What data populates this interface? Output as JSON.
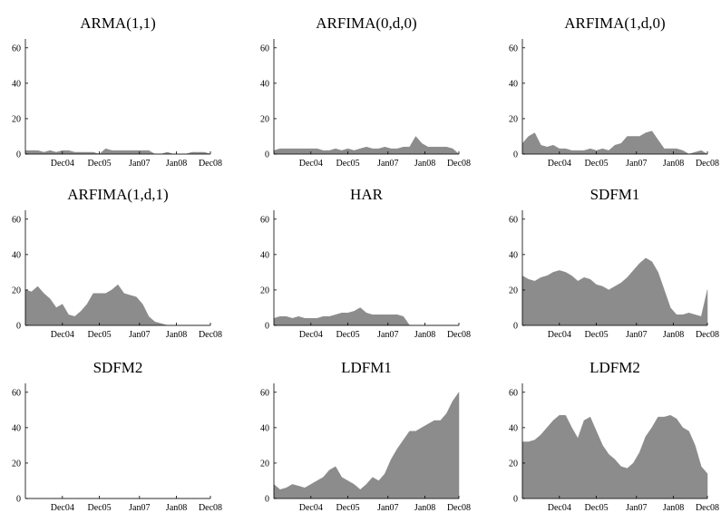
{
  "chart_data": [
    {
      "type": "area",
      "title": "ARMA(1,1)",
      "color": "#8c8c8c",
      "x": [
        0,
        2,
        4,
        6,
        8,
        10,
        12,
        14,
        16,
        18,
        20,
        22,
        24,
        26,
        28,
        30,
        32,
        34,
        36,
        38,
        40,
        42,
        44,
        46,
        48,
        50,
        52,
        54,
        56,
        58,
        60
      ],
      "values": [
        2,
        2,
        2,
        1,
        2,
        1,
        2,
        2,
        1,
        1,
        1,
        1,
        0,
        3,
        2,
        2,
        2,
        2,
        2,
        2,
        2,
        0,
        0,
        1,
        0,
        0,
        0,
        1,
        1,
        1,
        0
      ],
      "xlim": [
        0,
        60
      ],
      "ylim": [
        0,
        65
      ],
      "yticks": [
        0,
        20,
        40,
        60
      ],
      "xticks": [
        {
          "value": 12,
          "label": "Dec04"
        },
        {
          "value": 24,
          "label": "Dec05"
        },
        {
          "value": 37,
          "label": "Jan07"
        },
        {
          "value": 49,
          "label": "Jan08"
        },
        {
          "value": 60,
          "label": "Dec08"
        }
      ]
    },
    {
      "type": "area",
      "title": "ARFIMA(0,d,0)",
      "color": "#8c8c8c",
      "x": [
        0,
        2,
        4,
        6,
        8,
        10,
        12,
        14,
        16,
        18,
        20,
        22,
        24,
        26,
        28,
        30,
        32,
        34,
        36,
        38,
        40,
        42,
        44,
        46,
        48,
        50,
        52,
        54,
        56,
        58,
        60
      ],
      "values": [
        2,
        3,
        3,
        3,
        3,
        3,
        3,
        3,
        2,
        2,
        3,
        2,
        3,
        2,
        3,
        4,
        3,
        3,
        4,
        3,
        3,
        4,
        4,
        10,
        6,
        4,
        4,
        4,
        4,
        3,
        0
      ],
      "xlim": [
        0,
        60
      ],
      "ylim": [
        0,
        65
      ],
      "yticks": [
        0,
        20,
        40,
        60
      ],
      "xticks": [
        {
          "value": 12,
          "label": "Dec04"
        },
        {
          "value": 24,
          "label": "Dec05"
        },
        {
          "value": 37,
          "label": "Jan07"
        },
        {
          "value": 49,
          "label": "Jan08"
        },
        {
          "value": 60,
          "label": "Dec08"
        }
      ]
    },
    {
      "type": "area",
      "title": "ARFIMA(1,d,0)",
      "color": "#8c8c8c",
      "x": [
        0,
        2,
        4,
        6,
        8,
        10,
        12,
        14,
        16,
        18,
        20,
        22,
        24,
        26,
        28,
        30,
        32,
        34,
        36,
        38,
        40,
        42,
        44,
        46,
        48,
        50,
        52,
        54,
        56,
        58,
        60
      ],
      "values": [
        6,
        10,
        12,
        5,
        4,
        5,
        3,
        3,
        2,
        2,
        2,
        3,
        2,
        3,
        2,
        5,
        6,
        10,
        10,
        10,
        12,
        13,
        8,
        3,
        3,
        3,
        2,
        0,
        1,
        2,
        0
      ],
      "xlim": [
        0,
        60
      ],
      "ylim": [
        0,
        65
      ],
      "yticks": [
        0,
        20,
        40,
        60
      ],
      "xticks": [
        {
          "value": 12,
          "label": "Dec04"
        },
        {
          "value": 24,
          "label": "Dec05"
        },
        {
          "value": 37,
          "label": "Jan07"
        },
        {
          "value": 49,
          "label": "Jan08"
        },
        {
          "value": 60,
          "label": "Dec08"
        }
      ]
    },
    {
      "type": "area",
      "title": "ARFIMA(1,d,1)",
      "color": "#8c8c8c",
      "x": [
        0,
        2,
        4,
        6,
        8,
        10,
        12,
        14,
        16,
        18,
        20,
        22,
        24,
        26,
        28,
        30,
        32,
        34,
        36,
        38,
        40,
        42,
        44,
        46,
        48,
        50,
        52,
        54,
        56,
        58,
        60
      ],
      "values": [
        20,
        19,
        22,
        18,
        15,
        10,
        12,
        6,
        5,
        8,
        12,
        18,
        18,
        18,
        20,
        23,
        18,
        17,
        16,
        12,
        5,
        2,
        1,
        0,
        0,
        0,
        0,
        0,
        0,
        0,
        0
      ],
      "xlim": [
        0,
        60
      ],
      "ylim": [
        0,
        65
      ],
      "yticks": [
        0,
        20,
        40,
        60
      ],
      "xticks": [
        {
          "value": 12,
          "label": "Dec04"
        },
        {
          "value": 24,
          "label": "Dec05"
        },
        {
          "value": 37,
          "label": "Jan07"
        },
        {
          "value": 49,
          "label": "Jan08"
        },
        {
          "value": 60,
          "label": "Dec08"
        }
      ]
    },
    {
      "type": "area",
      "title": "HAR",
      "color": "#8c8c8c",
      "x": [
        0,
        2,
        4,
        6,
        8,
        10,
        12,
        14,
        16,
        18,
        20,
        22,
        24,
        26,
        28,
        30,
        32,
        34,
        36,
        38,
        40,
        42,
        44,
        46,
        48,
        50,
        52,
        54,
        56,
        58,
        60
      ],
      "values": [
        4,
        5,
        5,
        4,
        5,
        4,
        4,
        4,
        5,
        5,
        6,
        7,
        7,
        8,
        10,
        7,
        6,
        6,
        6,
        6,
        6,
        5,
        0,
        0,
        0,
        0,
        0,
        0,
        0,
        0,
        0
      ],
      "xlim": [
        0,
        60
      ],
      "ylim": [
        0,
        65
      ],
      "yticks": [
        0,
        20,
        40,
        60
      ],
      "xticks": [
        {
          "value": 12,
          "label": "Dec04"
        },
        {
          "value": 24,
          "label": "Dec05"
        },
        {
          "value": 37,
          "label": "Jan07"
        },
        {
          "value": 49,
          "label": "Jan08"
        },
        {
          "value": 60,
          "label": "Dec08"
        }
      ]
    },
    {
      "type": "area",
      "title": "SDFM1",
      "color": "#8c8c8c",
      "x": [
        0,
        2,
        4,
        6,
        8,
        10,
        12,
        14,
        16,
        18,
        20,
        22,
        24,
        26,
        28,
        30,
        32,
        34,
        36,
        38,
        40,
        42,
        44,
        46,
        48,
        50,
        52,
        54,
        56,
        58,
        60
      ],
      "values": [
        28,
        26,
        25,
        27,
        28,
        30,
        31,
        30,
        28,
        25,
        27,
        26,
        23,
        22,
        20,
        22,
        24,
        27,
        31,
        35,
        38,
        36,
        30,
        20,
        10,
        6,
        6,
        7,
        6,
        5,
        20
      ],
      "xlim": [
        0,
        60
      ],
      "ylim": [
        0,
        65
      ],
      "yticks": [
        0,
        20,
        40,
        60
      ],
      "xticks": [
        {
          "value": 12,
          "label": "Dec04"
        },
        {
          "value": 24,
          "label": "Dec05"
        },
        {
          "value": 37,
          "label": "Jan07"
        },
        {
          "value": 49,
          "label": "Jan08"
        },
        {
          "value": 60,
          "label": "Dec08"
        }
      ]
    },
    {
      "type": "area",
      "title": "SDFM2",
      "color": "#8c8c8c",
      "x": [
        0,
        2,
        4,
        6,
        8,
        10,
        12,
        14,
        16,
        18,
        20,
        22,
        24,
        26,
        28,
        30,
        32,
        34,
        36,
        38,
        40,
        42,
        44,
        46,
        48,
        50,
        52,
        54,
        56,
        58,
        60
      ],
      "values": [
        0,
        0,
        0,
        0,
        0,
        0,
        0,
        0,
        0,
        0,
        0,
        0,
        0,
        0,
        0,
        0,
        0,
        0,
        0,
        0,
        0,
        0,
        0,
        0,
        0,
        0,
        0,
        0,
        0,
        0,
        0
      ],
      "xlim": [
        0,
        60
      ],
      "ylim": [
        0,
        65
      ],
      "yticks": [
        0,
        20,
        40,
        60
      ],
      "xticks": [
        {
          "value": 12,
          "label": "Dec04"
        },
        {
          "value": 24,
          "label": "Dec05"
        },
        {
          "value": 37,
          "label": "Jan07"
        },
        {
          "value": 49,
          "label": "Jan08"
        },
        {
          "value": 60,
          "label": "Dec08"
        }
      ]
    },
    {
      "type": "area",
      "title": "LDFM1",
      "color": "#8c8c8c",
      "x": [
        0,
        2,
        4,
        6,
        8,
        10,
        12,
        14,
        16,
        18,
        20,
        22,
        24,
        26,
        28,
        30,
        32,
        34,
        36,
        38,
        40,
        42,
        44,
        46,
        48,
        50,
        52,
        54,
        56,
        58,
        60
      ],
      "values": [
        8,
        5,
        6,
        8,
        7,
        6,
        8,
        10,
        12,
        16,
        18,
        12,
        10,
        8,
        5,
        8,
        12,
        10,
        14,
        22,
        28,
        33,
        38,
        38,
        40,
        42,
        44,
        44,
        48,
        55,
        60
      ],
      "xlim": [
        0,
        60
      ],
      "ylim": [
        0,
        65
      ],
      "yticks": [
        0,
        20,
        40,
        60
      ],
      "xticks": [
        {
          "value": 12,
          "label": "Dec04"
        },
        {
          "value": 24,
          "label": "Dec05"
        },
        {
          "value": 37,
          "label": "Jan07"
        },
        {
          "value": 49,
          "label": "Jan08"
        },
        {
          "value": 60,
          "label": "Dec08"
        }
      ]
    },
    {
      "type": "area",
      "title": "LDFM2",
      "color": "#8c8c8c",
      "x": [
        0,
        2,
        4,
        6,
        8,
        10,
        12,
        14,
        16,
        18,
        20,
        22,
        24,
        26,
        28,
        30,
        32,
        34,
        36,
        38,
        40,
        42,
        44,
        46,
        48,
        50,
        52,
        54,
        56,
        58,
        60
      ],
      "values": [
        32,
        32,
        33,
        36,
        40,
        44,
        47,
        47,
        40,
        34,
        44,
        46,
        38,
        30,
        25,
        22,
        18,
        17,
        20,
        26,
        35,
        40,
        46,
        46,
        47,
        45,
        40,
        38,
        30,
        18,
        14
      ],
      "xlim": [
        0,
        60
      ],
      "ylim": [
        0,
        65
      ],
      "yticks": [
        0,
        20,
        40,
        60
      ],
      "xticks": [
        {
          "value": 12,
          "label": "Dec04"
        },
        {
          "value": 24,
          "label": "Dec05"
        },
        {
          "value": 37,
          "label": "Jan07"
        },
        {
          "value": 49,
          "label": "Jan08"
        },
        {
          "value": 60,
          "label": "Dec08"
        }
      ]
    }
  ]
}
